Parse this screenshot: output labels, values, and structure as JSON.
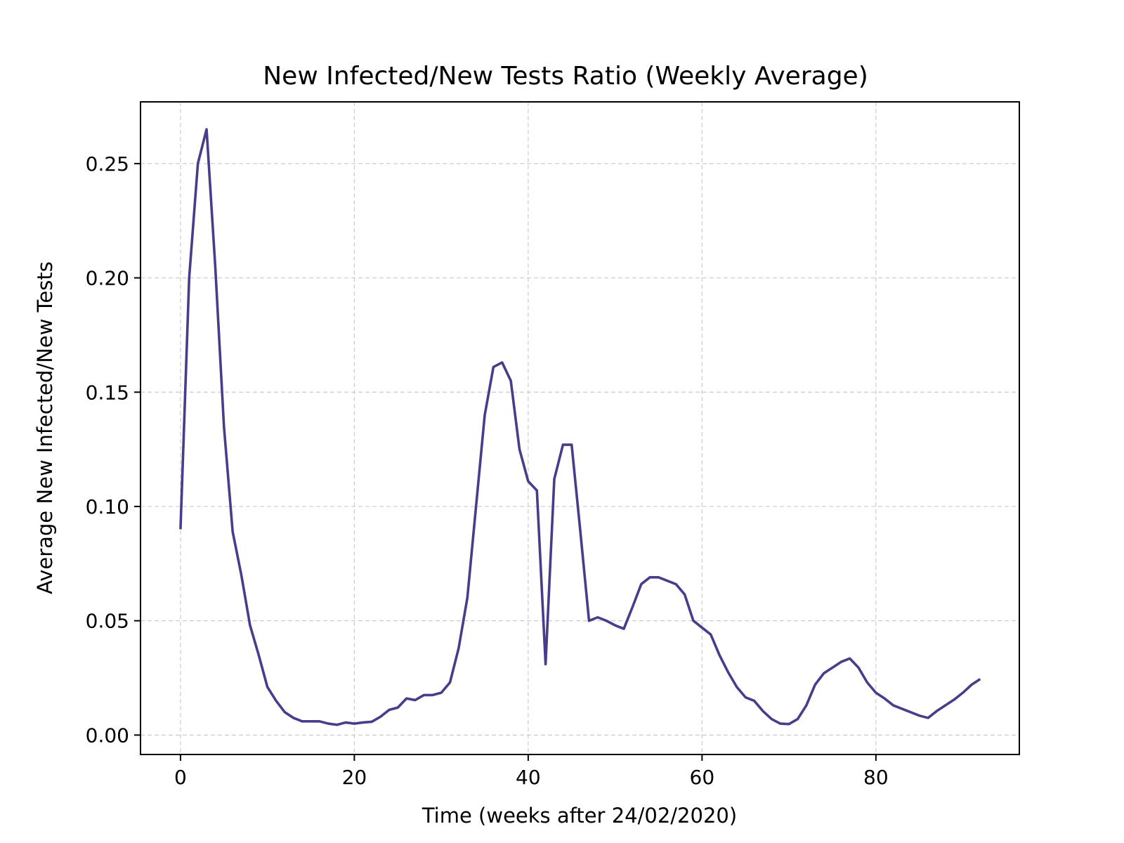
{
  "chart_data": {
    "type": "line",
    "title": "New Infected/New Tests Ratio (Weekly Average)",
    "xlabel": "Time (weeks after 24/02/2020)",
    "ylabel": "Average New Infected/New Tests",
    "xlim": [
      -4.6,
      96.5
    ],
    "ylim": [
      -0.0085,
      0.277
    ],
    "x_ticks": [
      0,
      20,
      40,
      60,
      80
    ],
    "x_tick_labels": [
      "0",
      "20",
      "40",
      "60",
      "80"
    ],
    "y_ticks": [
      0.0,
      0.05,
      0.1,
      0.15,
      0.2,
      0.25
    ],
    "y_tick_labels": [
      "0.00",
      "0.05",
      "0.10",
      "0.15",
      "0.20",
      "0.25"
    ],
    "grid": true,
    "line_color": "#483d8b",
    "series": [
      {
        "x": [
          0,
          1,
          2,
          3,
          4,
          5,
          6,
          7,
          8,
          9,
          10,
          11,
          12,
          13,
          14,
          15,
          16,
          17,
          18,
          19,
          20,
          21,
          22,
          23,
          24,
          25,
          26,
          27,
          28,
          29,
          30,
          31,
          32,
          33,
          34,
          35,
          36,
          37,
          38,
          39,
          40,
          41,
          42,
          43,
          44,
          45,
          46,
          47,
          48,
          49,
          50,
          51,
          52,
          53,
          54,
          55,
          56,
          57,
          58,
          59,
          60,
          61,
          62,
          63,
          64,
          65,
          66,
          67,
          68,
          69,
          70,
          71,
          72,
          73,
          74,
          75,
          76,
          77,
          78,
          79,
          80,
          81,
          82,
          83,
          84,
          85,
          86,
          87,
          88,
          89,
          90,
          91,
          92
        ],
        "values": [
          0.09,
          0.2,
          0.25,
          0.265,
          0.205,
          0.135,
          0.089,
          0.07,
          0.048,
          0.035,
          0.021,
          0.015,
          0.01,
          0.0075,
          0.006,
          0.006,
          0.006,
          0.005,
          0.0045,
          0.0055,
          0.005,
          0.0055,
          0.0058,
          0.008,
          0.011,
          0.012,
          0.016,
          0.0153,
          0.0175,
          0.0175,
          0.0185,
          0.023,
          0.038,
          0.06,
          0.1,
          0.14,
          0.161,
          0.163,
          0.155,
          0.125,
          0.111,
          0.107,
          0.031,
          0.112,
          0.127,
          0.127,
          0.089,
          0.05,
          0.0515,
          0.05,
          0.048,
          0.0465,
          0.056,
          0.066,
          0.069,
          0.069,
          0.0675,
          0.066,
          0.0615,
          0.05,
          0.047,
          0.044,
          0.035,
          0.0275,
          0.021,
          0.0165,
          0.015,
          0.0105,
          0.007,
          0.005,
          0.0048,
          0.007,
          0.013,
          0.022,
          0.027,
          0.0295,
          0.032,
          0.0335,
          0.0295,
          0.023,
          0.0185,
          0.016,
          0.013,
          0.0115,
          0.01,
          0.0085,
          0.0075,
          0.0105,
          0.013,
          0.0155,
          0.0185,
          0.022,
          0.0245
        ]
      }
    ]
  }
}
